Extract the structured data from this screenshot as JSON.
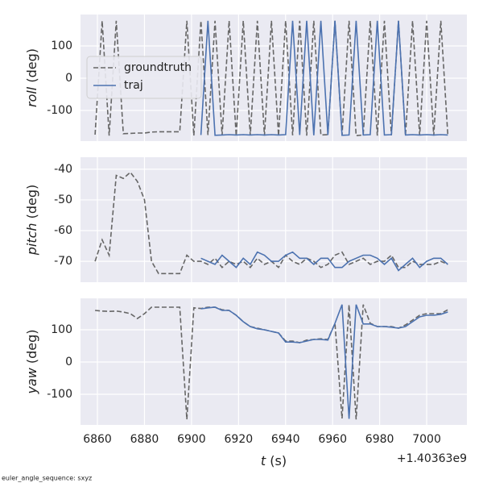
{
  "chart_data": [
    {
      "type": "line",
      "ylabel": {
        "symbol": "roll",
        "unit": "(deg)"
      },
      "legend": "upper left",
      "xlim": [
        6852.8,
        7017.1
      ],
      "xticks": [
        6860,
        6880,
        6900,
        6920,
        6940,
        6960,
        6980,
        7000
      ],
      "ylim": [
        -195,
        197.5
      ],
      "yticks": [
        -100,
        0,
        100
      ],
      "grid": true,
      "x": [
        6859,
        6862,
        6865,
        6868,
        6871,
        6874,
        6877,
        6880,
        6883,
        6886,
        6889,
        6892,
        6895,
        6898,
        6901,
        6904,
        6907,
        6910,
        6913,
        6916,
        6919,
        6922,
        6925,
        6928,
        6931,
        6934,
        6937,
        6940,
        6943,
        6946,
        6949,
        6952,
        6955,
        6958,
        6961,
        6964,
        6967,
        6970,
        6973,
        6976,
        6979,
        6982,
        6985,
        6988,
        6991,
        6994,
        6997,
        7000,
        7003,
        7006,
        7009
      ],
      "series": [
        {
          "name": "groundtruth",
          "color": "#666666",
          "linestyle": "dashed",
          "values": [
            -175,
            178,
            -178,
            178,
            -172,
            -171,
            -170,
            -170,
            -167,
            -166,
            -166,
            -166,
            -166,
            178,
            -178,
            178,
            -176,
            178,
            -177,
            178,
            -178,
            178,
            -177,
            178,
            -178,
            178,
            -178,
            178,
            -177,
            178,
            -178,
            178,
            -176,
            -175,
            178,
            -177,
            178,
            -178,
            -176,
            178,
            -178,
            178,
            -177,
            178,
            -178,
            178,
            -177,
            178,
            -178,
            178,
            -177
          ]
        },
        {
          "name": "traj",
          "color": "#4c72b0",
          "linestyle": "solid",
          "values": [
            null,
            null,
            null,
            null,
            null,
            null,
            null,
            null,
            null,
            null,
            null,
            null,
            null,
            null,
            null,
            -176,
            178,
            -177,
            -176,
            -175,
            -176,
            -175,
            -176,
            -175,
            -176,
            -175,
            -176,
            -175,
            178,
            -176,
            178,
            -177,
            178,
            -176,
            178,
            -177,
            -176,
            178,
            -176,
            -175,
            178,
            -176,
            -175,
            178,
            -176,
            -175,
            -176,
            -175,
            -176,
            -175,
            -176
          ]
        }
      ]
    },
    {
      "type": "line",
      "ylabel": {
        "symbol": "pitch",
        "unit": "(deg)"
      },
      "xlim": [
        6852.8,
        7017.1
      ],
      "xticks": [
        6860,
        6880,
        6900,
        6920,
        6940,
        6960,
        6980,
        7000
      ],
      "ylim": [
        -76.8,
        -36.1
      ],
      "yticks": [
        -70,
        -60,
        -50,
        -40
      ],
      "grid": true,
      "x": [
        6859,
        6862,
        6865,
        6868,
        6871,
        6874,
        6877,
        6880,
        6883,
        6886,
        6889,
        6892,
        6895,
        6898,
        6901,
        6904,
        6907,
        6910,
        6913,
        6916,
        6919,
        6922,
        6925,
        6928,
        6931,
        6934,
        6937,
        6940,
        6943,
        6946,
        6949,
        6952,
        6955,
        6958,
        6961,
        6964,
        6967,
        6970,
        6973,
        6976,
        6979,
        6982,
        6985,
        6988,
        6991,
        6994,
        6997,
        7000,
        7003,
        7006,
        7009
      ],
      "series": [
        {
          "name": "groundtruth",
          "color": "#666666",
          "linestyle": "dashed",
          "values": [
            -70,
            -63,
            -68,
            -42,
            -43,
            -41,
            -44,
            -50,
            -70,
            -74,
            -74,
            -74,
            -74,
            -68,
            -70,
            -70,
            -71,
            -69,
            -72,
            -70,
            -71,
            -70,
            -72,
            -69,
            -71,
            -70,
            -72,
            -68,
            -70,
            -71,
            -69,
            -70,
            -72,
            -71,
            -68,
            -67,
            -71,
            -70,
            -69,
            -71,
            -70,
            -70,
            -68,
            -72,
            -72,
            -70,
            -71,
            -71,
            -71,
            -70,
            -71
          ]
        },
        {
          "name": "traj",
          "color": "#4c72b0",
          "linestyle": "solid",
          "values": [
            null,
            null,
            null,
            null,
            null,
            null,
            null,
            null,
            null,
            null,
            null,
            null,
            null,
            null,
            null,
            -69,
            -70,
            -71,
            -68,
            -70,
            -72,
            -69,
            -71,
            -67,
            -68,
            -70,
            -70,
            -68,
            -67,
            -69,
            -69,
            -71,
            -69,
            -69,
            -72,
            -72,
            -70,
            -69,
            -68,
            -68,
            -69,
            -71,
            -69,
            -73,
            -71,
            -69,
            -72,
            -70,
            -69,
            -69,
            -71
          ]
        }
      ]
    },
    {
      "type": "line",
      "ylabel": {
        "symbol": "yaw",
        "unit": "(deg)"
      },
      "xlabel": {
        "symbol": "t",
        "unit": "(s)"
      },
      "xoffset": "+1.40363e9",
      "xlim": [
        6852.8,
        7017.1
      ],
      "xticks": [
        6860,
        6880,
        6900,
        6920,
        6940,
        6960,
        6980,
        7000
      ],
      "ylim": [
        -195,
        197.5
      ],
      "yticks": [
        -100,
        0,
        100
      ],
      "grid": true,
      "x": [
        6859,
        6862,
        6865,
        6868,
        6871,
        6874,
        6877,
        6880,
        6883,
        6886,
        6889,
        6892,
        6895,
        6898,
        6901,
        6904,
        6907,
        6910,
        6913,
        6916,
        6919,
        6922,
        6925,
        6928,
        6931,
        6934,
        6937,
        6940,
        6943,
        6946,
        6949,
        6952,
        6955,
        6958,
        6961,
        6964,
        6967,
        6970,
        6973,
        6976,
        6979,
        6982,
        6985,
        6988,
        6991,
        6994,
        6997,
        7000,
        7003,
        7006,
        7009
      ],
      "series": [
        {
          "name": "groundtruth",
          "color": "#666666",
          "linestyle": "dashed",
          "values": [
            160,
            158,
            157,
            158,
            155,
            150,
            135,
            150,
            170,
            170,
            170,
            170,
            170,
            -178,
            168,
            166,
            170,
            170,
            162,
            160,
            145,
            125,
            110,
            105,
            100,
            95,
            90,
            65,
            65,
            60,
            68,
            70,
            72,
            70,
            120,
            -175,
            178,
            -178,
            178,
            120,
            110,
            110,
            110,
            105,
            115,
            130,
            145,
            150,
            150,
            150,
            162
          ]
        },
        {
          "name": "traj",
          "color": "#4c72b0",
          "linestyle": "solid",
          "values": [
            null,
            null,
            null,
            null,
            null,
            null,
            null,
            null,
            null,
            null,
            null,
            null,
            null,
            null,
            null,
            165,
            168,
            170,
            160,
            160,
            145,
            125,
            110,
            103,
            100,
            95,
            90,
            62,
            62,
            60,
            65,
            70,
            70,
            68,
            120,
            178,
            -176,
            178,
            118,
            118,
            110,
            110,
            108,
            105,
            110,
            125,
            140,
            145,
            145,
            148,
            155
          ]
        }
      ]
    }
  ],
  "footnote": "euler_angle_sequence: sxyz"
}
